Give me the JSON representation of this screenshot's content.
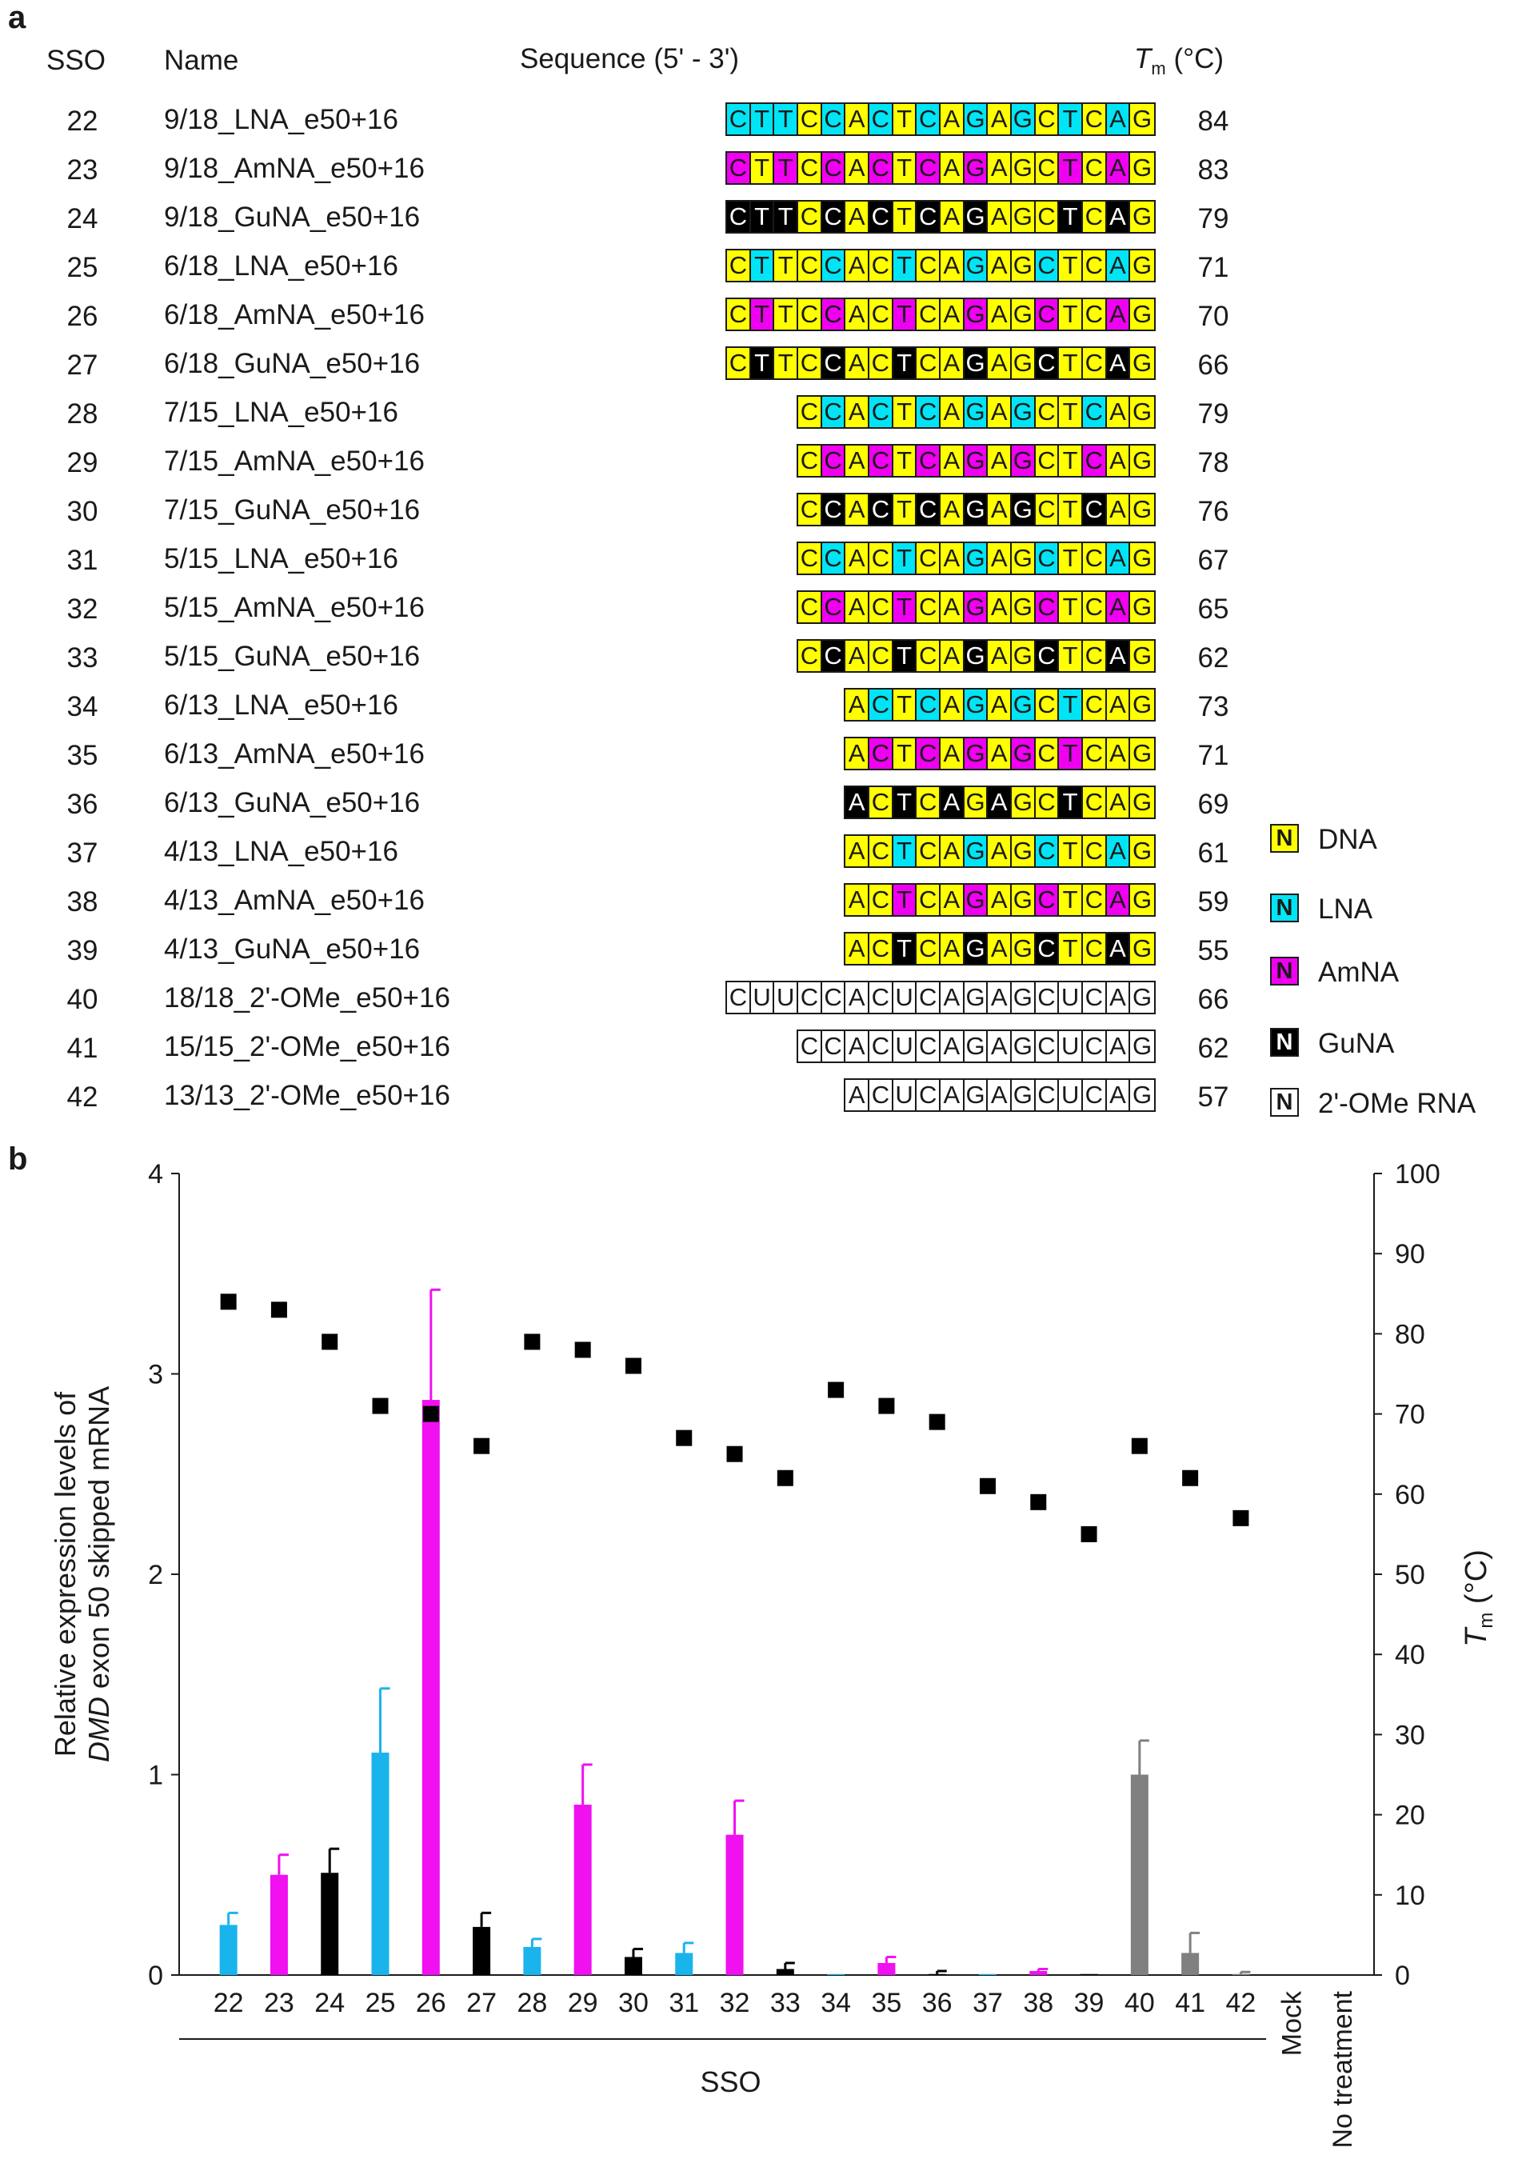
{
  "panel_a": {
    "letter": "a",
    "headers": {
      "sso": "SSO",
      "name": "Name",
      "sequence": "Sequence (5' - 3')",
      "tm_italic": "T",
      "tm_sub": "m",
      "tm_unit": " (°C)"
    },
    "rows": [
      {
        "sso": "22",
        "name": "9/18_LNA_e50+16",
        "tm": "84",
        "seq": "CTTCCACTCAGAGCTCAG",
        "mods": "LLLDLDLDLDLDLDLDLD"
      },
      {
        "sso": "23",
        "name": "9/18_AmNA_e50+16",
        "tm": "83",
        "seq": "CTTCCACTCAGAGCTCAG",
        "mods": "MDMDMDMDMDMDDDMDMD"
      },
      {
        "sso": "24",
        "name": "9/18_GuNA_e50+16",
        "tm": "79",
        "seq": "CTTCCACTCAGAGCTCAG",
        "mods": "GGGDGDGDGDGDDDGDGD"
      },
      {
        "sso": "25",
        "name": "6/18_LNA_e50+16",
        "tm": "71",
        "seq": "CTTCCACTCAGAGCTCAG",
        "mods": "DLDDLDDLDDLDDLDDLD"
      },
      {
        "sso": "26",
        "name": "6/18_AmNA_e50+16",
        "tm": "70",
        "seq": "CTTCCACTCAGAGCTCAG",
        "mods": "DMDDMDDMDDMDDMDDMD"
      },
      {
        "sso": "27",
        "name": "6/18_GuNA_e50+16",
        "tm": "66",
        "seq": "CTTCCACTCAGAGCTCAG",
        "mods": "DGDDGDDGDDGDDGDDGD"
      },
      {
        "sso": "28",
        "name": "7/15_LNA_e50+16",
        "tm": "79",
        "seq": "CCACTCAGAGCTCAG",
        "mods": "DLDLDLDLDLDDLDD"
      },
      {
        "sso": "29",
        "name": "7/15_AmNA_e50+16",
        "tm": "78",
        "seq": "CCACTCAGAGCTCAG",
        "mods": "DMDMDMDMDMDDMDD"
      },
      {
        "sso": "30",
        "name": "7/15_GuNA_e50+16",
        "tm": "76",
        "seq": "CCACTCAGAGCTCAG",
        "mods": "DGDGDGDGDGDDGDD"
      },
      {
        "sso": "31",
        "name": "5/15_LNA_e50+16",
        "tm": "67",
        "seq": "CCACTCAGAGCTCAG",
        "mods": "DLDDLDDLDDLDDLD"
      },
      {
        "sso": "32",
        "name": "5/15_AmNA_e50+16",
        "tm": "65",
        "seq": "CCACTCAGAGCTCAG",
        "mods": "DMDDMDDMDDMDDMD"
      },
      {
        "sso": "33",
        "name": "5/15_GuNA_e50+16",
        "tm": "62",
        "seq": "CCACTCAGAGCTCAG",
        "mods": "DGDDGDDGDDGDDGD"
      },
      {
        "sso": "34",
        "name": "6/13_LNA_e50+16",
        "tm": "73",
        "seq": "ACTCAGAGCTCAG",
        "mods": "DLDLDLDLDLDDD"
      },
      {
        "sso": "35",
        "name": "6/13_AmNA_e50+16",
        "tm": "71",
        "seq": "ACTCAGAGCTCAG",
        "mods": "DMDMDMDMDMDDD"
      },
      {
        "sso": "36",
        "name": "6/13_GuNA_e50+16",
        "tm": "69",
        "seq": "ACTCAGAGCTCAG",
        "mods": "GDGDGDGDDGDDD"
      },
      {
        "sso": "37",
        "name": "4/13_LNA_e50+16",
        "tm": "61",
        "seq": "ACTCAGAGCTCAG",
        "mods": "DDLDDLDDLDDLD"
      },
      {
        "sso": "38",
        "name": "4/13_AmNA_e50+16",
        "tm": "59",
        "seq": "ACTCAGAGCTCAG",
        "mods": "DDMDDMDDMDDMD"
      },
      {
        "sso": "39",
        "name": "4/13_GuNA_e50+16",
        "tm": "55",
        "seq": "ACTCAGAGCTCAG",
        "mods": "DDGDDGDDGDDGD"
      },
      {
        "sso": "40",
        "name": "18/18_2'-OMe_e50+16",
        "tm": "66",
        "seq": "CUUCCACUCAGAGCUCAG",
        "mods": "OOOOOOOOOOOOOOOOOO"
      },
      {
        "sso": "41",
        "name": "15/15_2'-OMe_e50+16",
        "tm": "62",
        "seq": "CCACUCAGAGCUCAG",
        "mods": "OOOOOOOOOOOOOOO"
      },
      {
        "sso": "42",
        "name": "13/13_2'-OMe_e50+16",
        "tm": "57",
        "seq": "ACUCAGAGCUCAG",
        "mods": "OOOOOOOOOOOOO"
      }
    ],
    "legend": [
      {
        "symbol": "N",
        "label": "DNA",
        "cls": "DNA"
      },
      {
        "symbol": "N",
        "label": "LNA",
        "cls": "LNA"
      },
      {
        "symbol": "N",
        "label": "AmNA",
        "cls": "AmNA"
      },
      {
        "symbol": "N",
        "label": "GuNA",
        "cls": "GuNA"
      },
      {
        "symbol": "N",
        "label": "2'-OMe RNA",
        "cls": "OMe"
      }
    ],
    "mod_key": {
      "D": "DNA",
      "L": "LNA",
      "M": "AmNA",
      "G": "GuNA",
      "O": "OMe"
    }
  },
  "chart_data": {
    "type": "bar",
    "panel_letter": "b",
    "categories": [
      "22",
      "23",
      "24",
      "25",
      "26",
      "27",
      "28",
      "29",
      "30",
      "31",
      "32",
      "33",
      "34",
      "35",
      "36",
      "37",
      "38",
      "39",
      "40",
      "41",
      "42",
      "Mock",
      "No treatment"
    ],
    "bar_values": [
      0.25,
      0.5,
      0.51,
      1.11,
      2.87,
      0.24,
      0.14,
      0.85,
      0.09,
      0.11,
      0.7,
      0.03,
      0.005,
      0.06,
      0.005,
      0.005,
      0.02,
      0.005,
      1.0,
      0.11,
      0.005,
      0,
      0
    ],
    "bar_errors": [
      0.06,
      0.1,
      0.12,
      0.32,
      0.55,
      0.07,
      0.04,
      0.2,
      0.04,
      0.05,
      0.17,
      0.03,
      0.0,
      0.03,
      0.015,
      0.0,
      0.01,
      0.0,
      0.17,
      0.1,
      0.01,
      0,
      0
    ],
    "bar_types": [
      "LNA",
      "AmNA",
      "GuNA",
      "LNA",
      "AmNA",
      "GuNA",
      "LNA",
      "AmNA",
      "GuNA",
      "LNA",
      "AmNA",
      "GuNA",
      "LNA",
      "AmNA",
      "GuNA",
      "LNA",
      "AmNA",
      "GuNA",
      "OMe",
      "OMe",
      "OMe",
      "none",
      "none"
    ],
    "type_colors": {
      "LNA": "#1ab4ec",
      "AmNA": "#f010f0",
      "GuNA": "#000000",
      "OMe": "#808080",
      "none": "#ffffff"
    },
    "tm_series": {
      "name": "Tm",
      "values": [
        84,
        83,
        79,
        71,
        70,
        66,
        79,
        78,
        76,
        67,
        65,
        62,
        73,
        71,
        69,
        61,
        59,
        55,
        66,
        62,
        57,
        null,
        null
      ],
      "color": "#000000"
    },
    "ylabel_line1": "Relative expression levels of",
    "ylabel_italic": "DMD",
    "ylabel_line2_rest": " exon 50 skipped mRNA",
    "y2label_italic": "T",
    "y2label_sub": "m",
    "y2label_unit": " (°C)",
    "ylim": [
      0,
      4
    ],
    "y_ticks": [
      "0",
      "1",
      "2",
      "3",
      "4"
    ],
    "y2lim": [
      0,
      100
    ],
    "y2_ticks": [
      "0",
      "10",
      "20",
      "30",
      "40",
      "50",
      "60",
      "70",
      "80",
      "90",
      "100"
    ],
    "xlabel": "SSO",
    "sso_group_count": 21
  }
}
